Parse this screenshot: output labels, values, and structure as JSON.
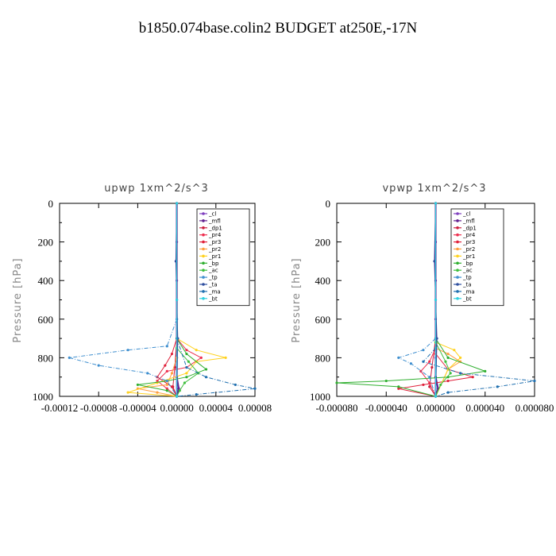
{
  "page_title": "b1850.074base.colin2  BUDGET at250E,-17N",
  "legend_items": [
    {
      "label": "_cl",
      "color": "#7f3fbf"
    },
    {
      "label": "_mfl",
      "color": "#5f1f8f"
    },
    {
      "label": "_dp1",
      "color": "#cc1f3f"
    },
    {
      "label": "_pr4",
      "color": "#ee2f4f"
    },
    {
      "label": "_pr3",
      "color": "#e0203a"
    },
    {
      "label": "_pr2",
      "color": "#ff9f3f"
    },
    {
      "label": "_pr1",
      "color": "#ffd21f"
    },
    {
      "label": "_bp",
      "color": "#2faf2f"
    },
    {
      "label": "_ac",
      "color": "#3fbf3f"
    },
    {
      "label": "_tp",
      "color": "#3f8fcf"
    },
    {
      "label": "_ta",
      "color": "#2f4f9f"
    },
    {
      "label": "_ma",
      "color": "#1f6faf"
    },
    {
      "label": "_bt",
      "color": "#2fd0e0"
    }
  ],
  "chart_data": [
    {
      "type": "line",
      "title": "upwp   1xm^2/s^3",
      "ylabel": "Pressure [hPa]",
      "xlabel": "",
      "xlim": [
        -0.00012,
        8e-05
      ],
      "ylim": [
        1000,
        0
      ],
      "x_ticks": [
        "-0.00012",
        "-0.00008",
        "-0.00004",
        "0.00000",
        "0.00004",
        "0.00008"
      ],
      "y_ticks": [
        "0",
        "200",
        "400",
        "600",
        "800",
        "1000"
      ],
      "legend": "top-right",
      "series": [
        {
          "name": "_cl",
          "points": [
            [
              0,
              0
            ],
            [
              0,
              200
            ],
            [
              0,
              400
            ],
            [
              0,
              600
            ],
            [
              0,
              800
            ],
            [
              0,
              1000
            ]
          ]
        },
        {
          "name": "_mfl",
          "points": [
            [
              0,
              0
            ],
            [
              0,
              500
            ],
            [
              0,
              900
            ],
            [
              2e-06,
              960
            ],
            [
              0,
              1000
            ]
          ]
        },
        {
          "name": "_dp1",
          "points": [
            [
              0,
              0
            ],
            [
              0,
              700
            ],
            [
              -2e-06,
              850
            ],
            [
              -4e-06,
              950
            ],
            [
              0,
              1000
            ]
          ]
        },
        {
          "name": "_pr4",
          "points": [
            [
              0,
              700
            ],
            [
              1e-05,
              760
            ],
            [
              2.5e-05,
              800
            ],
            [
              1e-05,
              850
            ],
            [
              -1e-05,
              870
            ],
            [
              -2e-05,
              920
            ],
            [
              -1e-05,
              960
            ],
            [
              0,
              1000
            ]
          ]
        },
        {
          "name": "_pr3",
          "points": [
            [
              0,
              700
            ],
            [
              -5e-06,
              780
            ],
            [
              -1.2e-05,
              840
            ],
            [
              -2e-05,
              900
            ],
            [
              -5e-06,
              950
            ],
            [
              0,
              1000
            ]
          ]
        },
        {
          "name": "_pr2",
          "points": [
            [
              0,
              800
            ],
            [
              -5e-06,
              880
            ],
            [
              -1e-05,
              940
            ],
            [
              -4e-05,
              960
            ],
            [
              -2e-05,
              980
            ],
            [
              0,
              1000
            ]
          ]
        },
        {
          "name": "_pr1",
          "points": [
            [
              0,
              700
            ],
            [
              2e-05,
              760
            ],
            [
              5e-05,
              800
            ],
            [
              2e-05,
              820
            ],
            [
              1e-05,
              880
            ],
            [
              -2e-05,
              930
            ],
            [
              -5e-05,
              980
            ],
            [
              0,
              1000
            ]
          ]
        },
        {
          "name": "_bp",
          "points": [
            [
              0,
              700
            ],
            [
              1e-05,
              780
            ],
            [
              3e-05,
              860
            ],
            [
              1e-05,
              900
            ],
            [
              -1e-05,
              920
            ],
            [
              -4e-05,
              940
            ],
            [
              -1e-05,
              970
            ],
            [
              0,
              1000
            ]
          ]
        },
        {
          "name": "_ac",
          "points": [
            [
              0,
              750
            ],
            [
              1.2e-05,
              820
            ],
            [
              2.2e-05,
              880
            ],
            [
              8e-06,
              930
            ],
            [
              3e-06,
              970
            ],
            [
              0,
              1000
            ]
          ]
        },
        {
          "name": "_tp",
          "points": [
            [
              0,
              600
            ],
            [
              -1e-05,
              740
            ],
            [
              -5e-05,
              760
            ],
            [
              -0.00011,
              800
            ],
            [
              -8e-05,
              840
            ],
            [
              -3e-05,
              880
            ],
            [
              -1e-05,
              920
            ],
            [
              0,
              1000
            ]
          ]
        },
        {
          "name": "_ta",
          "points": [
            [
              0,
              0
            ],
            [
              -1e-06,
              300
            ],
            [
              1e-06,
              700
            ],
            [
              0,
              1000
            ]
          ]
        },
        {
          "name": "_ma",
          "points": [
            [
              0,
              700
            ],
            [
              1e-05,
              850
            ],
            [
              3e-05,
              900
            ],
            [
              6e-05,
              940
            ],
            [
              8e-05,
              960
            ],
            [
              2e-05,
              990
            ],
            [
              0,
              1000
            ]
          ]
        },
        {
          "name": "_bt",
          "points": [
            [
              0,
              0
            ],
            [
              0,
              500
            ],
            [
              0,
              1000
            ]
          ]
        }
      ]
    },
    {
      "type": "line",
      "title": "vpwp   1xm^2/s^3",
      "ylabel": "Pressure [hPa]",
      "xlabel": "",
      "xlim": [
        -8e-05,
        8e-05
      ],
      "ylim": [
        1000,
        0
      ],
      "x_ticks": [
        "-0.000080",
        "-0.000040",
        "0.000000",
        "0.000040",
        "0.000080"
      ],
      "y_ticks": [
        "0",
        "200",
        "400",
        "600",
        "800",
        "1000"
      ],
      "legend": "top-right",
      "series": [
        {
          "name": "_cl",
          "points": [
            [
              0,
              0
            ],
            [
              0,
              200
            ],
            [
              0,
              400
            ],
            [
              0,
              600
            ],
            [
              0,
              800
            ],
            [
              0,
              1000
            ]
          ]
        },
        {
          "name": "_mfl",
          "points": [
            [
              0,
              0
            ],
            [
              0,
              500
            ],
            [
              0,
              900
            ],
            [
              2e-06,
              960
            ],
            [
              0,
              1000
            ]
          ]
        },
        {
          "name": "_dp1",
          "points": [
            [
              0,
              0
            ],
            [
              0,
              700
            ],
            [
              -3e-06,
              850
            ],
            [
              -5e-06,
              950
            ],
            [
              0,
              1000
            ]
          ]
        },
        {
          "name": "_pr4",
          "points": [
            [
              0,
              750
            ],
            [
              -5e-06,
              820
            ],
            [
              -1.2e-05,
              870
            ],
            [
              -5e-06,
              930
            ],
            [
              0,
              1000
            ]
          ]
        },
        {
          "name": "_pr3",
          "points": [
            [
              0,
              780
            ],
            [
              1e-05,
              860
            ],
            [
              3e-05,
              900
            ],
            [
              1e-05,
              920
            ],
            [
              -1e-05,
              940
            ],
            [
              -3e-05,
              960
            ],
            [
              0,
              1000
            ]
          ]
        },
        {
          "name": "_pr2",
          "points": [
            [
              0,
              750
            ],
            [
              1e-05,
              780
            ],
            [
              2e-05,
              820
            ],
            [
              1e-05,
              860
            ],
            [
              0,
              1000
            ]
          ]
        },
        {
          "name": "_pr1",
          "points": [
            [
              0,
              720
            ],
            [
              1.5e-05,
              760
            ],
            [
              2e-05,
              800
            ],
            [
              1e-05,
              860
            ],
            [
              0,
              1000
            ]
          ]
        },
        {
          "name": "_bp",
          "points": [
            [
              0,
              700
            ],
            [
              1e-05,
              800
            ],
            [
              4e-05,
              870
            ],
            [
              1e-05,
              900
            ],
            [
              -4e-05,
              920
            ],
            [
              -8e-05,
              930
            ],
            [
              -3e-05,
              950
            ],
            [
              0,
              1000
            ]
          ]
        },
        {
          "name": "_ac",
          "points": [
            [
              0,
              720
            ],
            [
              8e-06,
              820
            ],
            [
              1.2e-05,
              880
            ],
            [
              4e-06,
              940
            ],
            [
              0,
              1000
            ]
          ]
        },
        {
          "name": "_tp",
          "points": [
            [
              0,
              700
            ],
            [
              -1e-05,
              760
            ],
            [
              -3e-05,
              800
            ],
            [
              -2e-05,
              830
            ],
            [
              -5e-06,
              900
            ],
            [
              0,
              1000
            ]
          ]
        },
        {
          "name": "_ta",
          "points": [
            [
              0,
              0
            ],
            [
              -1e-06,
              300
            ],
            [
              1e-06,
              700
            ],
            [
              0,
              1000
            ]
          ]
        },
        {
          "name": "_ma",
          "points": [
            [
              0,
              750
            ],
            [
              -1e-05,
              820
            ],
            [
              2e-05,
              880
            ],
            [
              8e-05,
              920
            ],
            [
              5e-05,
              950
            ],
            [
              1e-05,
              980
            ],
            [
              0,
              1000
            ]
          ]
        },
        {
          "name": "_bt",
          "points": [
            [
              0,
              0
            ],
            [
              0,
              500
            ],
            [
              0,
              1000
            ]
          ]
        }
      ]
    }
  ]
}
